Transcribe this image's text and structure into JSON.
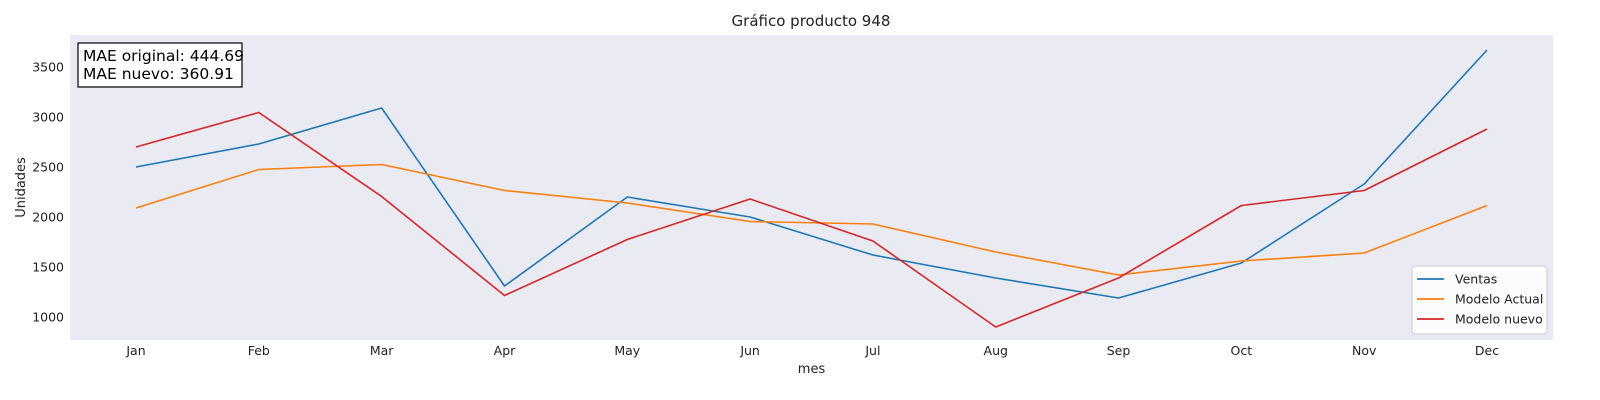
{
  "chart_data": {
    "type": "line",
    "title": "Gráfico producto 948",
    "xlabel": "mes",
    "ylabel": "Unidades",
    "categories": [
      "Jan",
      "Feb",
      "Mar",
      "Apr",
      "May",
      "Jun",
      "Jul",
      "Aug",
      "Sep",
      "Oct",
      "Nov",
      "Dec"
    ],
    "ylim": [
      770,
      3820
    ],
    "yticks": [
      1000,
      1500,
      2000,
      2500,
      3000,
      3500
    ],
    "grid": false,
    "legend_position": "lower-right",
    "background_color": "#eaeaf2",
    "series": [
      {
        "name": "Ventas",
        "color": "#1f77b4",
        "values": [
          2500,
          2730,
          3090,
          1310,
          2200,
          2000,
          1620,
          1390,
          1190,
          1540,
          2330,
          3670
        ]
      },
      {
        "name": "Modelo Actual",
        "color": "#ff7f0e",
        "values": [
          2090,
          2475,
          2525,
          2265,
          2140,
          1955,
          1930,
          1650,
          1420,
          1560,
          1640,
          2115
        ]
      },
      {
        "name": "Modelo nuevo",
        "color": "#d62728",
        "values": [
          2700,
          3045,
          2205,
          1215,
          1775,
          2180,
          1760,
          900,
          1390,
          2115,
          2265,
          2880
        ]
      }
    ],
    "annotation": {
      "line1": "MAE original: 444.69",
      "line2": "MAE nuevo: 360.91",
      "position": "top-left"
    }
  }
}
